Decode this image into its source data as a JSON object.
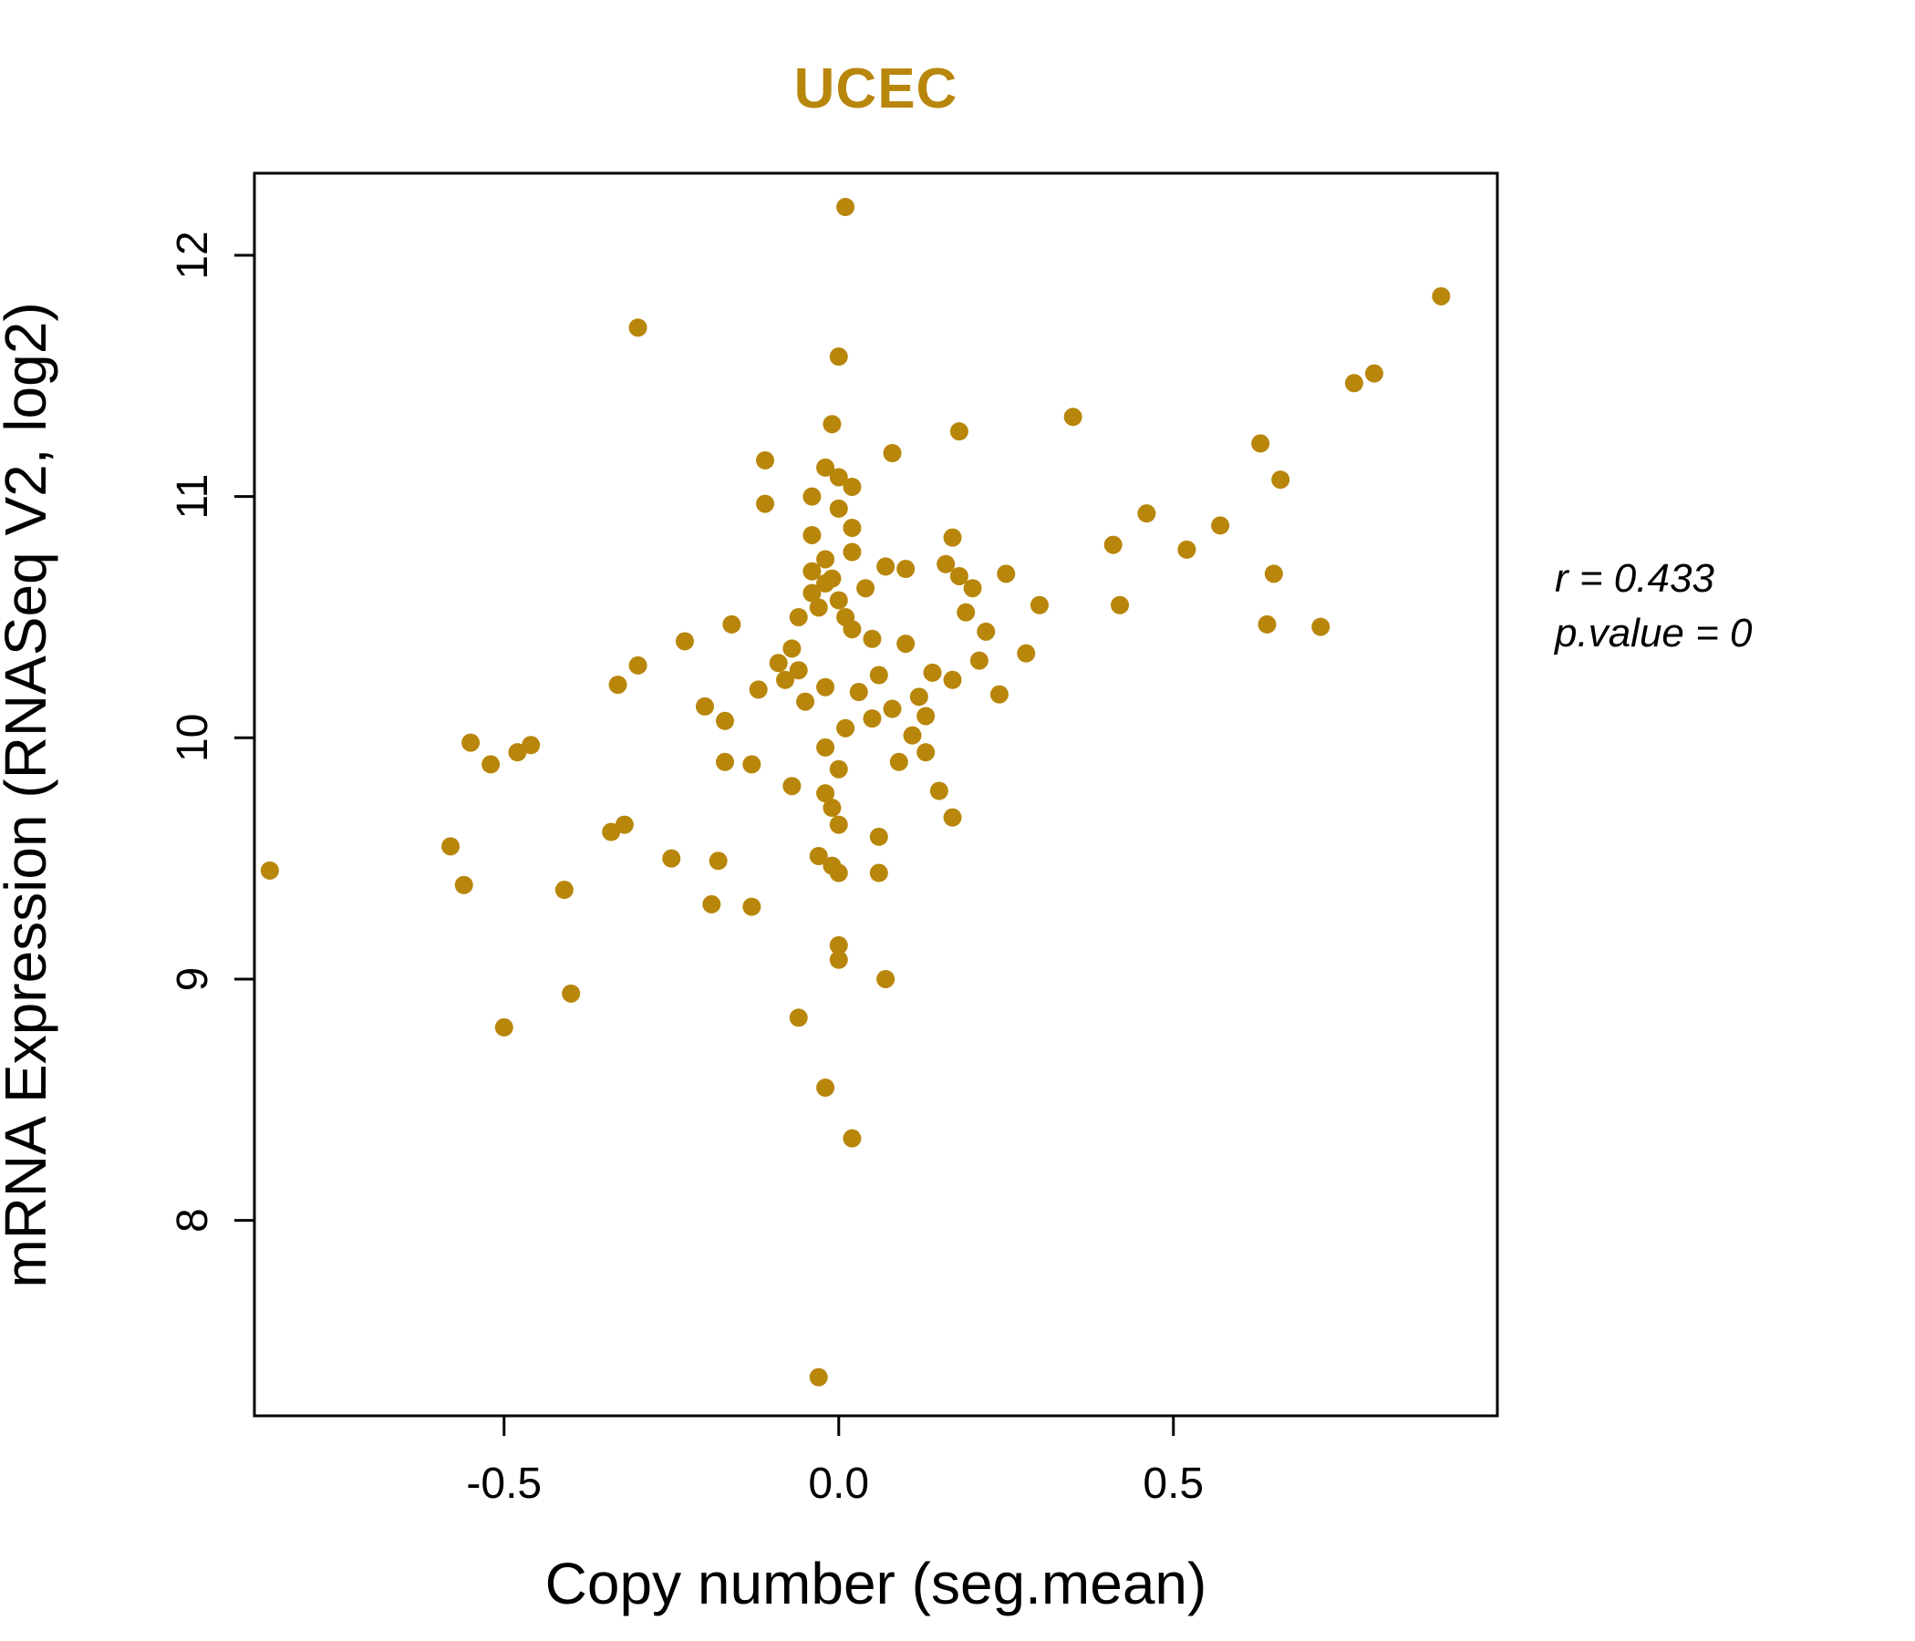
{
  "page": {
    "background": "#ffffff"
  },
  "chart_data": {
    "type": "scatter",
    "title": "UCEC",
    "title_color": "#B8860B",
    "point_color": "#B8860B",
    "point_radius": 10,
    "xlabel": "Copy number (seg.mean)",
    "ylabel": "mRNA Expression (RNASeq V2, log2)",
    "xlim": [
      -0.873,
      0.984
    ],
    "ylim": [
      7.19,
      12.34
    ],
    "x_ticks": [
      -0.5,
      0.0,
      0.5
    ],
    "x_tick_labels": [
      "-0.5",
      "0.0",
      "0.5"
    ],
    "y_ticks": [
      8,
      9,
      10,
      11,
      12
    ],
    "y_tick_labels": [
      "8",
      "9",
      "10",
      "11",
      "12"
    ],
    "grid": false,
    "annotation": {
      "line1": "r = 0.433",
      "line2": "p.value = 0"
    },
    "points": [
      [
        0.01,
        12.2
      ],
      [
        0.9,
        11.83
      ],
      [
        -0.3,
        11.7
      ],
      [
        0.0,
        11.58
      ],
      [
        0.8,
        11.51
      ],
      [
        0.77,
        11.47
      ],
      [
        0.35,
        11.33
      ],
      [
        -0.01,
        11.3
      ],
      [
        0.18,
        11.27
      ],
      [
        0.63,
        11.22
      ],
      [
        0.08,
        11.18
      ],
      [
        -0.11,
        11.15
      ],
      [
        -0.02,
        11.12
      ],
      [
        0.0,
        11.08
      ],
      [
        0.66,
        11.07
      ],
      [
        0.02,
        11.04
      ],
      [
        -0.04,
        11.0
      ],
      [
        -0.11,
        10.97
      ],
      [
        0.0,
        10.95
      ],
      [
        0.46,
        10.93
      ],
      [
        0.57,
        10.88
      ],
      [
        0.02,
        10.87
      ],
      [
        -0.04,
        10.84
      ],
      [
        0.17,
        10.83
      ],
      [
        0.41,
        10.8
      ],
      [
        0.52,
        10.78
      ],
      [
        0.02,
        10.77
      ],
      [
        -0.02,
        10.74
      ],
      [
        0.16,
        10.72
      ],
      [
        0.07,
        10.71
      ],
      [
        0.1,
        10.7
      ],
      [
        -0.04,
        10.69
      ],
      [
        0.18,
        10.67
      ],
      [
        0.65,
        10.68
      ],
      [
        -0.02,
        10.64
      ],
      [
        0.2,
        10.62
      ],
      [
        -0.04,
        10.6
      ],
      [
        0.0,
        10.57
      ],
      [
        0.42,
        10.55
      ],
      [
        -0.03,
        10.54
      ],
      [
        0.19,
        10.52
      ],
      [
        0.01,
        10.5
      ],
      [
        -0.16,
        10.47
      ],
      [
        0.64,
        10.47
      ],
      [
        0.22,
        10.44
      ],
      [
        0.72,
        10.46
      ],
      [
        -0.23,
        10.4
      ],
      [
        0.05,
        10.41
      ],
      [
        0.1,
        10.39
      ],
      [
        -0.07,
        10.37
      ],
      [
        0.28,
        10.35
      ],
      [
        0.21,
        10.32
      ],
      [
        -0.3,
        10.3
      ],
      [
        -0.06,
        10.28
      ],
      [
        0.14,
        10.27
      ],
      [
        0.17,
        10.24
      ],
      [
        -0.08,
        10.24
      ],
      [
        -0.33,
        10.22
      ],
      [
        -0.02,
        10.21
      ],
      [
        0.03,
        10.19
      ],
      [
        0.12,
        10.17
      ],
      [
        -0.05,
        10.15
      ],
      [
        0.08,
        10.12
      ],
      [
        0.13,
        10.09
      ],
      [
        -0.17,
        10.07
      ],
      [
        0.01,
        10.04
      ],
      [
        0.11,
        10.01
      ],
      [
        -0.55,
        9.98
      ],
      [
        -0.46,
        9.97
      ],
      [
        -0.48,
        9.94
      ],
      [
        0.13,
        9.94
      ],
      [
        -0.52,
        9.89
      ],
      [
        -0.17,
        9.9
      ],
      [
        -0.13,
        9.89
      ],
      [
        0.0,
        9.87
      ],
      [
        -0.07,
        9.8
      ],
      [
        -0.02,
        9.77
      ],
      [
        -0.01,
        9.71
      ],
      [
        0.17,
        9.67
      ],
      [
        0.0,
        9.64
      ],
      [
        -0.32,
        9.64
      ],
      [
        -0.34,
        9.61
      ],
      [
        0.06,
        9.59
      ],
      [
        -0.58,
        9.55
      ],
      [
        -0.25,
        9.5
      ],
      [
        -0.18,
        9.49
      ],
      [
        -0.03,
        9.51
      ],
      [
        -0.01,
        9.47
      ],
      [
        0.0,
        9.44
      ],
      [
        0.06,
        9.44
      ],
      [
        -0.85,
        9.45
      ],
      [
        -0.56,
        9.39
      ],
      [
        -0.41,
        9.37
      ],
      [
        -0.19,
        9.31
      ],
      [
        -0.13,
        9.3
      ],
      [
        0.0,
        9.14
      ],
      [
        0.0,
        9.08
      ],
      [
        0.07,
        9.0
      ],
      [
        -0.4,
        8.94
      ],
      [
        -0.06,
        8.84
      ],
      [
        -0.5,
        8.8
      ],
      [
        -0.02,
        8.55
      ],
      [
        0.02,
        8.34
      ],
      [
        -0.03,
        7.35
      ],
      [
        -0.01,
        10.66
      ],
      [
        0.04,
        10.62
      ],
      [
        -0.06,
        10.5
      ],
      [
        0.02,
        10.45
      ],
      [
        -0.09,
        10.31
      ],
      [
        0.06,
        10.26
      ],
      [
        -0.12,
        10.2
      ],
      [
        0.05,
        10.08
      ],
      [
        -0.02,
        9.96
      ],
      [
        0.09,
        9.9
      ],
      [
        -0.2,
        10.13
      ],
      [
        0.24,
        10.18
      ],
      [
        0.15,
        9.78
      ],
      [
        0.3,
        10.55
      ],
      [
        0.25,
        10.68
      ]
    ]
  }
}
